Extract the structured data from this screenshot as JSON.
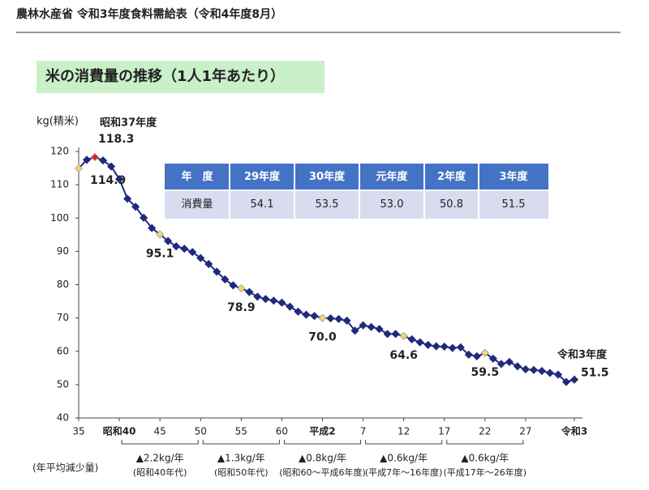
{
  "header": "農林水産省 令和3年度食料需給表（令和4年度8月）",
  "chart_data": {
    "type": "line",
    "title": "米の消費量の推移（1人1年あたり）",
    "ylabel": "kg(精米)",
    "categories": [
      "35",
      null,
      null,
      null,
      null,
      "昭和40",
      null,
      null,
      null,
      null,
      "45",
      null,
      null,
      null,
      null,
      "50",
      null,
      null,
      null,
      null,
      "55",
      null,
      null,
      null,
      null,
      "60",
      null,
      null,
      null,
      null,
      "平成2",
      null,
      null,
      null,
      null,
      "7",
      null,
      null,
      null,
      null,
      "12",
      null,
      null,
      null,
      null,
      "17",
      null,
      null,
      null,
      null,
      "22",
      null,
      null,
      null,
      null,
      "27",
      null,
      null,
      null,
      null,
      null,
      "令和3"
    ],
    "series": [
      {
        "color": "#1f2a7a",
        "label_marker_color": "#f5d76e",
        "values": [
          114.9,
          117.5,
          118.3,
          117.3,
          115.5,
          111.7,
          105.8,
          103.4,
          100.1,
          97.0,
          95.1,
          93.1,
          91.5,
          90.8,
          89.8,
          88.0,
          86.2,
          83.9,
          81.6,
          79.8,
          78.9,
          77.8,
          76.4,
          75.7,
          75.2,
          74.6,
          73.4,
          71.9,
          71.0,
          70.6,
          70.0,
          69.9,
          69.7,
          69.2,
          66.2,
          67.8,
          67.3,
          66.7,
          65.2,
          65.2,
          64.6,
          63.6,
          62.7,
          61.9,
          61.5,
          61.4,
          61.0,
          61.2,
          59.0,
          58.5,
          59.5,
          57.8,
          56.2,
          56.8,
          55.5,
          54.6,
          54.4,
          54.1,
          53.5,
          53.0,
          50.8,
          51.5
        ],
        "value_labels": [
          "114.9",
          null,
          "118.3",
          null,
          null,
          null,
          null,
          null,
          null,
          null,
          "95.1",
          null,
          null,
          null,
          null,
          null,
          null,
          null,
          null,
          null,
          "78.9",
          null,
          null,
          null,
          null,
          null,
          null,
          null,
          null,
          null,
          "70.0",
          null,
          null,
          null,
          null,
          null,
          null,
          null,
          null,
          null,
          "64.6",
          null,
          null,
          null,
          null,
          null,
          null,
          null,
          null,
          null,
          "59.5",
          null,
          null,
          null,
          null,
          null,
          null,
          null,
          null,
          null,
          null,
          "51.5"
        ]
      }
    ],
    "ylim": [
      40,
      120
    ],
    "yticks": [
      40,
      50,
      60,
      70,
      80,
      90,
      100,
      110,
      120
    ],
    "grid": false,
    "annotations": [
      {
        "text": "昭和37年度",
        "color": "#e02020"
      },
      {
        "text": "令和3年度",
        "color": "#e02020"
      }
    ],
    "decline_caption": "(年平均減少量)",
    "declines": [
      {
        "rate": "▲2.2kg/年",
        "period": "(昭和40年代)"
      },
      {
        "rate": "▲1.3kg/年",
        "period": "(昭和50年代)"
      },
      {
        "rate": "▲0.8kg/年",
        "period": "(昭和60～平成6年度)"
      },
      {
        "rate": "▲0.6kg/年",
        "period": "(平成7年～16年度)"
      },
      {
        "rate": "▲0.6kg/年",
        "period": "(平成17年～26年度)"
      }
    ]
  },
  "table": {
    "header": [
      "年　度",
      "29年度",
      "30年度",
      "元年度",
      "2年度",
      "3年度"
    ],
    "rows": [
      [
        "消費量",
        "54.1",
        "53.5",
        "53.0",
        "50.8",
        "51.5"
      ]
    ]
  }
}
